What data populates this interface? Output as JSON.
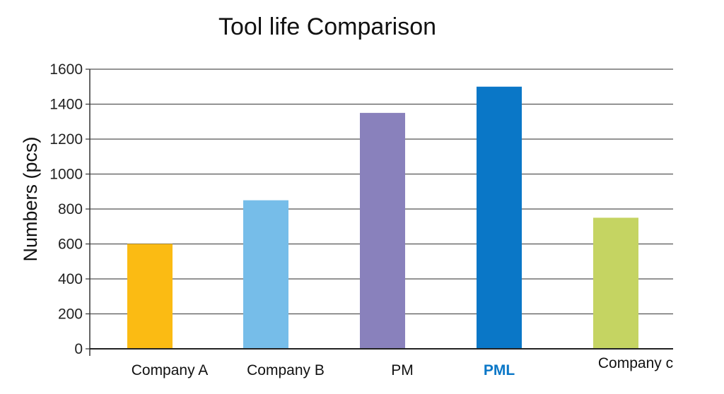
{
  "chart_data": {
    "type": "bar",
    "title": "Tool life Comparison",
    "xlabel": "",
    "ylabel": "Numbers (pcs)",
    "ylim": [
      0,
      1600
    ],
    "yticks": [
      0,
      200,
      400,
      600,
      800,
      1000,
      1200,
      1400,
      1600
    ],
    "grid": true,
    "categories": [
      "Company A",
      "Company B",
      "PM",
      "PML",
      "Company c"
    ],
    "values": [
      600,
      850,
      1350,
      1500,
      750
    ],
    "colors": [
      "#fbbb13",
      "#76bde9",
      "#8981bc",
      "#0a77c7",
      "#c5d462"
    ],
    "highlighted_category": "PML",
    "highlight_color": "#0a77c7"
  }
}
